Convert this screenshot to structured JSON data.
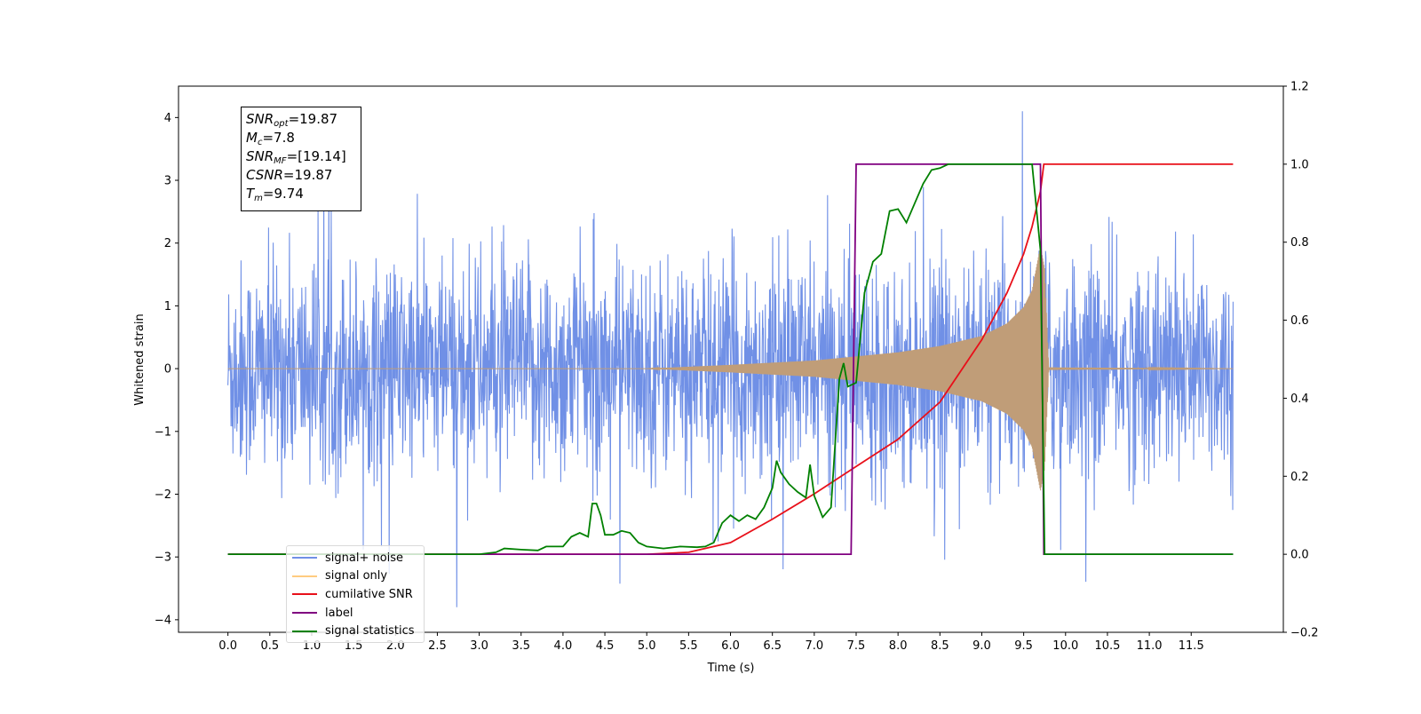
{
  "chart_data": {
    "type": "line",
    "xlabel": "Time (s)",
    "ylabel": "Whitened strain",
    "x_ticks": [
      0.0,
      0.5,
      1.0,
      1.5,
      2.0,
      2.5,
      3.0,
      3.5,
      4.0,
      4.5,
      5.0,
      5.5,
      6.0,
      6.5,
      7.0,
      7.5,
      8.0,
      8.5,
      9.0,
      9.5,
      10.0,
      10.5,
      11.0,
      11.5
    ],
    "x_tick_labels": [
      "0.0",
      "0.5",
      "1.0",
      "1.5",
      "2.0",
      "2.5",
      "3.0",
      "3.5",
      "4.0",
      "4.5",
      "5.0",
      "5.5",
      "6.0",
      "6.5",
      "7.0",
      "7.5",
      "8.0",
      "8.5",
      "9.0",
      "9.5",
      "10.0",
      "10.5",
      "11.0",
      "11.5"
    ],
    "xlim": [
      -0.59,
      12.6
    ],
    "ylim_left": [
      -4.2,
      4.5
    ],
    "y_left_ticks": [
      -4,
      -3,
      -2,
      -1,
      0,
      1,
      2,
      3,
      4
    ],
    "y_left_tick_labels": [
      "−4",
      "−3",
      "−2",
      "−1",
      "0",
      "1",
      "2",
      "3",
      "4"
    ],
    "ylim_right": [
      -0.2,
      1.2
    ],
    "y_right_ticks": [
      -0.2,
      0.0,
      0.2,
      0.4,
      0.6,
      0.8,
      1.0,
      1.2
    ],
    "y_right_tick_labels": [
      "−0.2",
      "0.0",
      "0.2",
      "0.4",
      "0.6",
      "0.8",
      "1.0",
      "1.2"
    ],
    "grid": false,
    "legend_position": "lower-left",
    "series": [
      {
        "name": "signal+ noise",
        "axis": "left",
        "color": "#7090e6",
        "kind": "noise",
        "x_start": 0.0,
        "x_end": 12.0,
        "typical_envelope": [
          -1.9,
          1.9
        ],
        "extreme_range": [
          -3.8,
          4.1
        ]
      },
      {
        "name": "signal only",
        "axis": "left",
        "color": "#ffcc80",
        "kind": "chirp",
        "x_start": 0.0,
        "x_end": 12.0,
        "x": [
          5.0,
          6.0,
          7.0,
          8.0,
          8.5,
          9.0,
          9.3,
          9.5,
          9.6,
          9.7,
          9.75,
          9.8,
          12.0
        ],
        "amplitude": [
          0.0,
          0.06,
          0.13,
          0.26,
          0.36,
          0.52,
          0.72,
          0.98,
          1.25,
          1.95,
          1.6,
          0.02,
          0.0
        ]
      },
      {
        "name": "cumilative SNR",
        "axis": "right",
        "color": "#e8101a",
        "x": [
          0.0,
          5.0,
          5.5,
          6.0,
          6.5,
          7.0,
          7.5,
          8.0,
          8.5,
          9.0,
          9.3,
          9.5,
          9.6,
          9.7,
          9.74,
          12.0
        ],
        "y": [
          0.0,
          0.0,
          0.005,
          0.03,
          0.09,
          0.155,
          0.225,
          0.295,
          0.39,
          0.55,
          0.67,
          0.77,
          0.84,
          0.93,
          1.0,
          1.0
        ]
      },
      {
        "name": "label",
        "axis": "right",
        "color": "#800080",
        "x": [
          0.0,
          7.44,
          7.5,
          9.7,
          9.74,
          12.0
        ],
        "y": [
          0.0,
          0.0,
          1.0,
          1.0,
          0.0,
          0.0
        ]
      },
      {
        "name": "signal statistics",
        "axis": "right",
        "color": "#008000",
        "x": [
          0.0,
          3.0,
          3.2,
          3.3,
          3.5,
          3.7,
          3.8,
          4.0,
          4.1,
          4.2,
          4.3,
          4.35,
          4.4,
          4.45,
          4.5,
          4.6,
          4.7,
          4.8,
          4.9,
          5.0,
          5.2,
          5.4,
          5.6,
          5.7,
          5.8,
          5.9,
          6.0,
          6.1,
          6.2,
          6.3,
          6.4,
          6.5,
          6.55,
          6.6,
          6.7,
          6.8,
          6.9,
          6.95,
          7.0,
          7.1,
          7.2,
          7.3,
          7.35,
          7.4,
          7.5,
          7.6,
          7.7,
          7.8,
          7.9,
          8.0,
          8.1,
          8.2,
          8.3,
          8.4,
          8.5,
          8.6,
          8.8,
          9.0,
          9.3,
          9.6,
          9.7,
          9.75,
          12.0
        ],
        "y": [
          0.0,
          0.0,
          0.005,
          0.015,
          0.012,
          0.01,
          0.02,
          0.02,
          0.045,
          0.055,
          0.045,
          0.13,
          0.13,
          0.1,
          0.05,
          0.05,
          0.06,
          0.055,
          0.03,
          0.02,
          0.015,
          0.02,
          0.018,
          0.02,
          0.03,
          0.08,
          0.1,
          0.085,
          0.1,
          0.09,
          0.12,
          0.17,
          0.24,
          0.21,
          0.18,
          0.16,
          0.145,
          0.23,
          0.15,
          0.095,
          0.12,
          0.45,
          0.49,
          0.43,
          0.44,
          0.67,
          0.75,
          0.77,
          0.88,
          0.885,
          0.85,
          0.9,
          0.95,
          0.985,
          0.99,
          1.0,
          1.0,
          1.0,
          1.0,
          1.0,
          0.78,
          0.0,
          0.0
        ]
      }
    ]
  },
  "annotation_box": {
    "snr_opt": {
      "symbol": "SNR",
      "sub": "opt",
      "value": "=19.87"
    },
    "mc": {
      "symbol": "M",
      "sub": "c",
      "value": "=7.8"
    },
    "snr_mf": {
      "symbol": "SNR",
      "sub": "MF",
      "value": "=[19.14]"
    },
    "csnr": {
      "symbol": "CSNR",
      "value": "=19.87"
    },
    "tm": {
      "symbol": "T",
      "sub": "m",
      "value": "=9.74"
    }
  },
  "legend": {
    "items": [
      {
        "label": "signal+ noise",
        "color": "#7090e6"
      },
      {
        "label": "signal only",
        "color": "#ffcc80"
      },
      {
        "label": "cumilative SNR",
        "color": "#e8101a"
      },
      {
        "label": "label",
        "color": "#800080"
      },
      {
        "label": "signal statistics",
        "color": "#008000"
      }
    ]
  }
}
